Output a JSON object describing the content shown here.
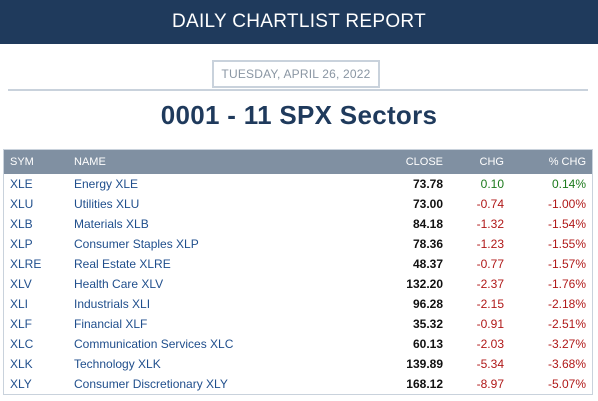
{
  "header": {
    "title": "DAILY CHARTLIST REPORT"
  },
  "report": {
    "date": "TUESDAY, APRIL 26, 2022",
    "list_title": "0001 - 11 SPX Sectors"
  },
  "table": {
    "columns": {
      "sym": "SYM",
      "name": "NAME",
      "close": "CLOSE",
      "chg": "CHG",
      "pct": "% CHG"
    },
    "rows": [
      {
        "sym": "XLE",
        "name": "Energy XLE",
        "close": "73.78",
        "chg": "0.10",
        "pct": "0.14%",
        "dir": "up"
      },
      {
        "sym": "XLU",
        "name": "Utilities XLU",
        "close": "73.00",
        "chg": "-0.74",
        "pct": "-1.00%",
        "dir": "down"
      },
      {
        "sym": "XLB",
        "name": "Materials XLB",
        "close": "84.18",
        "chg": "-1.32",
        "pct": "-1.54%",
        "dir": "down"
      },
      {
        "sym": "XLP",
        "name": "Consumer Staples XLP",
        "close": "78.36",
        "chg": "-1.23",
        "pct": "-1.55%",
        "dir": "down"
      },
      {
        "sym": "XLRE",
        "name": "Real Estate XLRE",
        "close": "48.37",
        "chg": "-0.77",
        "pct": "-1.57%",
        "dir": "down"
      },
      {
        "sym": "XLV",
        "name": "Health Care XLV",
        "close": "132.20",
        "chg": "-2.37",
        "pct": "-1.76%",
        "dir": "down"
      },
      {
        "sym": "XLI",
        "name": "Industrials XLI",
        "close": "96.28",
        "chg": "-2.15",
        "pct": "-2.18%",
        "dir": "down"
      },
      {
        "sym": "XLF",
        "name": "Financial XLF",
        "close": "35.32",
        "chg": "-0.91",
        "pct": "-2.51%",
        "dir": "down"
      },
      {
        "sym": "XLC",
        "name": "Communication Services XLC",
        "close": "60.13",
        "chg": "-2.03",
        "pct": "-3.27%",
        "dir": "down"
      },
      {
        "sym": "XLK",
        "name": "Technology XLK",
        "close": "139.89",
        "chg": "-5.34",
        "pct": "-3.68%",
        "dir": "down"
      },
      {
        "sym": "XLY",
        "name": "Consumer Discretionary XLY",
        "close": "168.12",
        "chg": "-8.97",
        "pct": "-5.07%",
        "dir": "down"
      }
    ]
  },
  "colors": {
    "header_bg": "#1f3a5c",
    "table_header_bg": "#8090a2",
    "link": "#1f4e8c",
    "positive": "#1c7a1c",
    "negative": "#b01818"
  }
}
